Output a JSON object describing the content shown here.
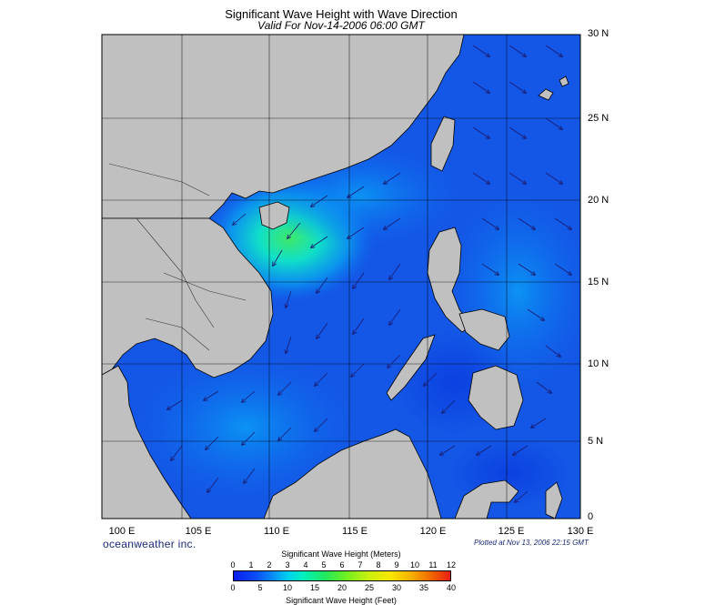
{
  "title": "Significant Wave Height with Wave Direction",
  "subtitle": "Valid For Nov-14-2006 06:00 GMT",
  "map": {
    "lon_range": [
      100,
      130
    ],
    "lat_range": [
      0,
      30
    ],
    "lon_labels": [
      "100 E",
      "105 E",
      "110 E",
      "115 E",
      "120 E",
      "125 E",
      "130 E"
    ],
    "lat_labels": [
      "30 N",
      "25 N",
      "20 N",
      "15 N",
      "10 N",
      "5 N",
      "0"
    ],
    "land_color": "#c0c0c0",
    "sea_color": "#1457e6",
    "grid": true
  },
  "brand": "oceanweather inc.",
  "plotted": "Plotted at Nov 13, 2006 22:15 GMT",
  "colorbar": {
    "title_meters": "Significant Wave Height (Meters)",
    "title_feet": "Significant Wave Height (Feet)",
    "meters_ticks": [
      "0",
      "1",
      "2",
      "3",
      "4",
      "5",
      "6",
      "7",
      "8",
      "9",
      "10",
      "11",
      "12"
    ],
    "feet_ticks": [
      "0",
      "5",
      "10",
      "15",
      "20",
      "25",
      "30",
      "35",
      "40"
    ]
  }
}
